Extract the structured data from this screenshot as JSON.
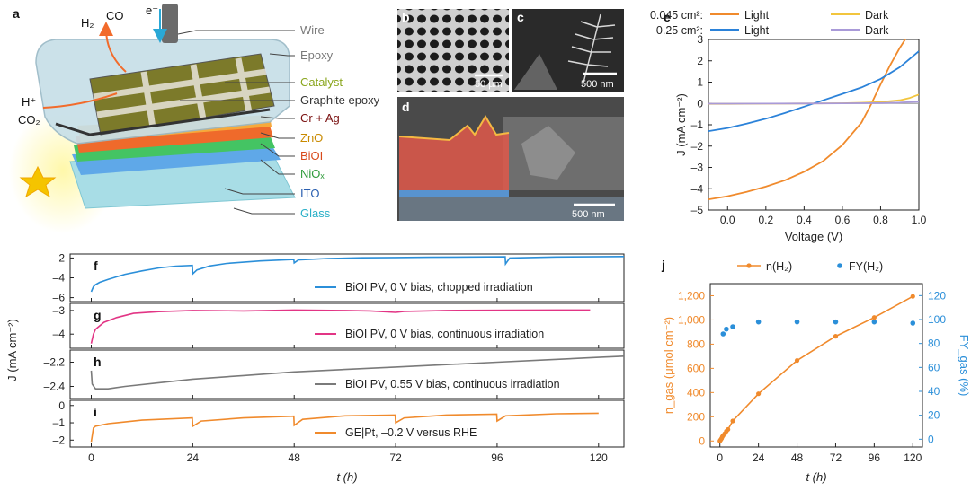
{
  "panels": {
    "a": "a",
    "b": "b",
    "c": "c",
    "d": "d",
    "e": "e",
    "f": "f",
    "g": "g",
    "h": "h",
    "i": "i",
    "j": "j"
  },
  "device": {
    "top_labels": {
      "h2": "H₂",
      "co": "CO",
      "electron": "e⁻",
      "h_plus": "H⁺",
      "co2": "CO₂"
    },
    "layers": [
      {
        "label": "Wire",
        "color": "#7a7a7a"
      },
      {
        "label": "Epoxy",
        "color": "#7a7a7a"
      },
      {
        "label": "Catalyst",
        "color": "#8aa61e"
      },
      {
        "label": "Graphite epoxy",
        "color": "#333333"
      },
      {
        "label": "Cr + Ag",
        "color": "#7a1010"
      },
      {
        "label": "ZnO",
        "color": "#c98a00"
      },
      {
        "label": "BiOI",
        "color": "#d84a1b"
      },
      {
        "label": "NiOₓ",
        "color": "#2e9b3a"
      },
      {
        "label": "ITO",
        "color": "#2a5fb0"
      },
      {
        "label": "Glass",
        "color": "#2ab0c8"
      }
    ]
  },
  "micrographs": {
    "b_scale": "50 μm",
    "c_scale": "500 nm",
    "d_scale": "500 nm"
  },
  "chart_data": [
    {
      "panel": "e",
      "type": "line",
      "xlabel": "Voltage (V)",
      "ylabel": "J (mA cm⁻²)",
      "xlim": [
        -0.1,
        1.0
      ],
      "ylim": [
        -5,
        3
      ],
      "xticks": [
        "0.0",
        "0.2",
        "0.4",
        "0.6",
        "0.8",
        "1.0"
      ],
      "yticks": [
        "3",
        "2",
        "1",
        "0",
        "–1",
        "–2",
        "–3",
        "–4",
        "–5"
      ],
      "legend": {
        "row1_area": "0.045 cm²:",
        "row2_area": "0.25 cm²:",
        "light": "Light",
        "dark": "Dark"
      },
      "series": [
        {
          "name": "Light",
          "area": "0.045 cm²",
          "color": "#f08a2c",
          "x": [
            -0.1,
            0.0,
            0.1,
            0.2,
            0.3,
            0.4,
            0.5,
            0.6,
            0.7,
            0.75,
            0.8,
            0.85,
            0.9,
            0.95,
            1.0
          ],
          "y": [
            -4.5,
            -4.35,
            -4.15,
            -3.9,
            -3.6,
            -3.2,
            -2.7,
            -1.95,
            -0.9,
            -0.05,
            0.9,
            1.8,
            2.6,
            3.3,
            4.0
          ]
        },
        {
          "name": "Dark",
          "area": "0.045 cm²",
          "color": "#f2c53d",
          "x": [
            -0.1,
            0.0,
            0.2,
            0.4,
            0.6,
            0.7,
            0.8,
            0.9,
            0.95,
            1.0
          ],
          "y": [
            -0.02,
            -0.02,
            -0.01,
            0.0,
            0.01,
            0.03,
            0.07,
            0.15,
            0.25,
            0.42
          ]
        },
        {
          "name": "Light",
          "area": "0.25 cm²",
          "color": "#2b82d9",
          "x": [
            -0.1,
            0.0,
            0.1,
            0.2,
            0.3,
            0.4,
            0.5,
            0.6,
            0.7,
            0.8,
            0.9,
            1.0
          ],
          "y": [
            -1.3,
            -1.15,
            -0.95,
            -0.72,
            -0.45,
            -0.15,
            0.15,
            0.45,
            0.75,
            1.15,
            1.7,
            2.45
          ]
        },
        {
          "name": "Dark",
          "area": "0.25 cm²",
          "color": "#a99ad8",
          "x": [
            -0.1,
            0.0,
            0.2,
            0.4,
            0.6,
            0.8,
            0.9,
            1.0
          ],
          "y": [
            -0.01,
            -0.01,
            -0.005,
            0.0,
            0.005,
            0.02,
            0.04,
            0.08
          ]
        }
      ]
    },
    {
      "panel": "f-i",
      "type": "line",
      "xlabel": "t (h)",
      "ylabel": "J (mA cm⁻²)",
      "xlim": [
        -5,
        126
      ],
      "xticks": [
        "0",
        "24",
        "48",
        "72",
        "96",
        "120"
      ],
      "subplots": [
        {
          "panel": "f",
          "name": "BiOI PV, 0 V bias, chopped irradiation",
          "color": "#2b8fd9",
          "ylim": [
            -6.4,
            -1.6
          ],
          "yticks": [
            "–2",
            "–4",
            "–6"
          ],
          "points": [
            [
              0,
              -5.4
            ],
            [
              0.5,
              -4.9
            ],
            [
              1,
              -4.7
            ],
            [
              2,
              -4.45
            ],
            [
              4,
              -4.15
            ],
            [
              8,
              -3.65
            ],
            [
              12,
              -3.3
            ],
            [
              16,
              -3.0
            ],
            [
              20,
              -2.82
            ],
            [
              23.9,
              -2.75
            ],
            [
              24,
              -3.6
            ],
            [
              25,
              -3.2
            ],
            [
              28,
              -2.8
            ],
            [
              32,
              -2.55
            ],
            [
              40,
              -2.3
            ],
            [
              47.9,
              -2.15
            ],
            [
              48,
              -2.5
            ],
            [
              49,
              -2.2
            ],
            [
              56,
              -2.05
            ],
            [
              64,
              -1.98
            ],
            [
              72,
              -1.95
            ],
            [
              80,
              -1.93
            ],
            [
              90,
              -1.9
            ],
            [
              97.9,
              -1.88
            ],
            [
              98,
              -2.6
            ],
            [
              99,
              -2.0
            ],
            [
              110,
              -1.9
            ],
            [
              126,
              -1.85
            ]
          ]
        },
        {
          "panel": "g",
          "name": "BiOI PV, 0 V bias, continuous irradiation",
          "color": "#e23585",
          "ylim": [
            -4.6,
            -2.7
          ],
          "yticks": [
            "–3",
            "–4"
          ],
          "points": [
            [
              0,
              -4.4
            ],
            [
              0.5,
              -4.0
            ],
            [
              1,
              -3.8
            ],
            [
              3,
              -3.5
            ],
            [
              6,
              -3.3
            ],
            [
              10,
              -3.12
            ],
            [
              16,
              -3.05
            ],
            [
              24,
              -3.0
            ],
            [
              36,
              -3.02
            ],
            [
              48,
              -2.98
            ],
            [
              60,
              -3.0
            ],
            [
              66,
              -3.02
            ],
            [
              70,
              -3.06
            ],
            [
              72,
              -3.08
            ],
            [
              74,
              -3.04
            ],
            [
              84,
              -3.0
            ],
            [
              100,
              -2.99
            ],
            [
              110,
              -2.98
            ],
            [
              118,
              -2.98
            ]
          ]
        },
        {
          "panel": "h",
          "name": "BiOI PV, 0.55 V bias, continuous irradiation",
          "color": "#7a7a7a",
          "ylim": [
            -2.5,
            -2.1
          ],
          "yticks": [
            "–2.2",
            "–2.4"
          ],
          "points": [
            [
              0,
              -2.27
            ],
            [
              0.2,
              -2.38
            ],
            [
              1,
              -2.42
            ],
            [
              4,
              -2.42
            ],
            [
              8,
              -2.4
            ],
            [
              16,
              -2.37
            ],
            [
              24,
              -2.34
            ],
            [
              36,
              -2.31
            ],
            [
              48,
              -2.28
            ],
            [
              60,
              -2.26
            ],
            [
              72,
              -2.24
            ],
            [
              84,
              -2.22
            ],
            [
              96,
              -2.2
            ],
            [
              108,
              -2.18
            ],
            [
              120,
              -2.16
            ],
            [
              126,
              -2.15
            ]
          ]
        },
        {
          "panel": "i",
          "name": "GE|Pt, –0.2 V versus RHE",
          "color": "#f08a2c",
          "ylim": [
            -2.4,
            0.3
          ],
          "yticks": [
            "0",
            "–1",
            "–2"
          ],
          "points": [
            [
              0,
              -2.1
            ],
            [
              0.5,
              -1.3
            ],
            [
              1,
              -1.2
            ],
            [
              4,
              -1.05
            ],
            [
              12,
              -0.85
            ],
            [
              23.9,
              -0.72
            ],
            [
              24,
              -1.2
            ],
            [
              26,
              -0.9
            ],
            [
              36,
              -0.72
            ],
            [
              47.9,
              -0.62
            ],
            [
              48,
              -1.15
            ],
            [
              50,
              -0.8
            ],
            [
              60,
              -0.6
            ],
            [
              71.9,
              -0.55
            ],
            [
              72,
              -1.0
            ],
            [
              74,
              -0.72
            ],
            [
              84,
              -0.55
            ],
            [
              95.9,
              -0.5
            ],
            [
              96,
              -0.9
            ],
            [
              98,
              -0.6
            ],
            [
              110,
              -0.48
            ],
            [
              120,
              -0.45
            ]
          ]
        }
      ]
    },
    {
      "panel": "j",
      "type": "scatter",
      "xlabel": "t (h)",
      "ylabel_left": "n_gas (μmol cm⁻²)",
      "ylabel_right": "FY_gas (%)",
      "xlim": [
        -6,
        126
      ],
      "ylim_left": [
        -50,
        1300
      ],
      "ylim_right": [
        -6.5,
        130
      ],
      "xticks": [
        "0",
        "24",
        "48",
        "72",
        "96",
        "120"
      ],
      "yticks_left": [
        "0",
        "200",
        "400",
        "600",
        "800",
        "1,000",
        "1,200"
      ],
      "yticks_right": [
        "0",
        "20",
        "40",
        "60",
        "80",
        "100",
        "120"
      ],
      "legend": {
        "n": "n(H₂)",
        "fy": "FY(H₂)"
      },
      "n_h2": {
        "color": "#f08a2c",
        "x": [
          0,
          0.5,
          1,
          1.5,
          2,
          3,
          4,
          5,
          8,
          24,
          48,
          72,
          96,
          120
        ],
        "y": [
          0,
          10,
          20,
          35,
          45,
          60,
          80,
          95,
          165,
          390,
          665,
          865,
          1020,
          1195
        ]
      },
      "fy_h2": {
        "color": "#2b8fd9",
        "x": [
          2,
          4,
          8,
          24,
          48,
          72,
          96,
          120
        ],
        "y": [
          88,
          92,
          94,
          98,
          98,
          98,
          98,
          97
        ]
      }
    }
  ]
}
